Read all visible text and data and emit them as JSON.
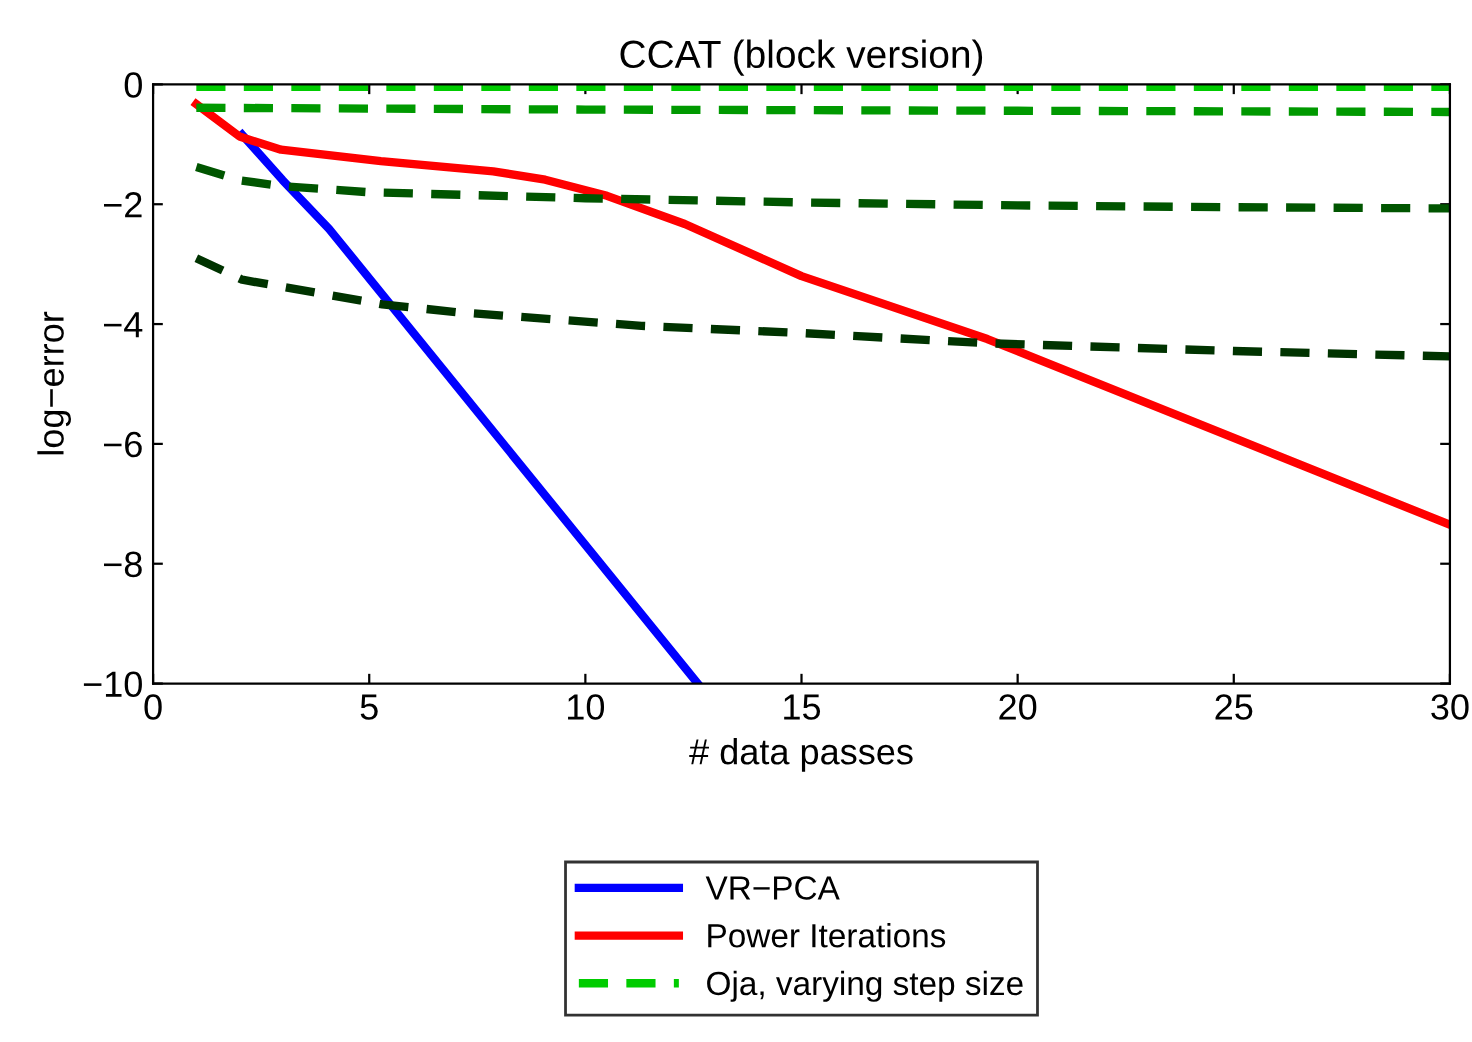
{
  "chart_data": {
    "type": "line",
    "title": "CCAT (block version)",
    "xlabel": "# data passes",
    "ylabel": "log−error",
    "xlim": [
      0,
      30
    ],
    "ylim": [
      -10,
      0
    ],
    "xticks": [
      0,
      5,
      10,
      15,
      20,
      25,
      30
    ],
    "yticks": [
      -10,
      -8,
      -6,
      -4,
      -2,
      0
    ],
    "grid": false,
    "legend": "bottom",
    "series": [
      {
        "name": "VR−PCA",
        "color": "#0000ff",
        "line_style": "solid",
        "x": [
          2.06,
          3,
          4.07,
          12.6
        ],
        "values": [
          -0.84,
          -1.6,
          -2.41,
          -10
        ]
      },
      {
        "name": "Power Iterations",
        "color": "#ff0000",
        "line_style": "solid",
        "x": [
          1,
          2,
          2.96,
          5.27,
          7.87,
          9.07,
          10.5,
          12.3,
          15,
          19.3,
          25,
          30
        ],
        "values": [
          -0.33,
          -0.87,
          -1.09,
          -1.28,
          -1.45,
          -1.59,
          -1.86,
          -2.33,
          -3.2,
          -4.25,
          -5.9,
          -7.35
        ]
      },
      {
        "name": "Oja, varying step size",
        "color": "#00cc00",
        "line_style": "dashed",
        "x": [
          1,
          30
        ],
        "values": [
          -0.04,
          -0.04
        ]
      },
      {
        "color": "#009900",
        "line_style": "dashed",
        "x": [
          1,
          10,
          20,
          30
        ],
        "values": [
          -0.39,
          -0.42,
          -0.44,
          -0.46
        ]
      },
      {
        "color": "#005500",
        "line_style": "dashed",
        "x": [
          1,
          2,
          3,
          5,
          10,
          15,
          20,
          25,
          30
        ],
        "values": [
          -1.38,
          -1.6,
          -1.7,
          -1.8,
          -1.9,
          -1.97,
          -2.02,
          -2.05,
          -2.07
        ]
      },
      {
        "color": "#003300",
        "line_style": "dashed",
        "x": [
          1,
          2.06,
          5.3,
          7,
          11.3,
          15,
          19.3,
          25,
          30
        ],
        "values": [
          -2.9,
          -3.26,
          -3.67,
          -3.8,
          -4.03,
          -4.15,
          -4.32,
          -4.45,
          -4.54
        ]
      }
    ]
  }
}
